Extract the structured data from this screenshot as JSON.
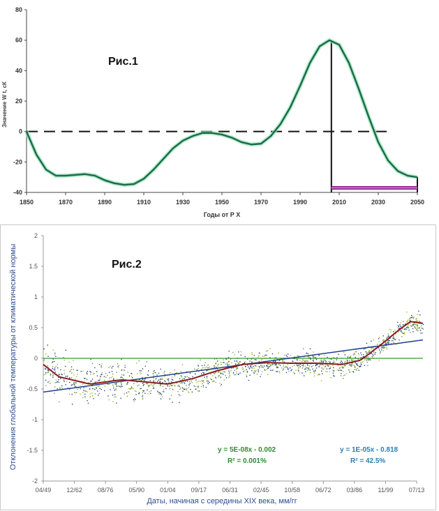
{
  "figure1": {
    "title": "Рис.1",
    "xlabel": "Годы от Р Х",
    "ylabel": "Значение W t, сК",
    "chart_data": {
      "type": "line",
      "x_ticks": [
        1850,
        1870,
        1890,
        1910,
        1930,
        1950,
        1970,
        1990,
        2010,
        2030,
        2050
      ],
      "y_ticks": [
        -40,
        -20,
        0,
        20,
        40,
        60,
        80
      ],
      "xlim": [
        1850,
        2050
      ],
      "ylim": [
        -40,
        80
      ],
      "series": [
        {
          "color": "#1d6b4f",
          "x": [
            1850,
            1855,
            1860,
            1865,
            1870,
            1875,
            1880,
            1885,
            1890,
            1895,
            1900,
            1905,
            1910,
            1915,
            1920,
            1925,
            1930,
            1935,
            1940,
            1945,
            1950,
            1955,
            1960,
            1965,
            1970,
            1975,
            1980,
            1985,
            1990,
            1995,
            2000,
            2005,
            2010,
            2015,
            2020,
            2025,
            2030,
            2035,
            2040,
            2045,
            2050
          ],
          "y": [
            0,
            -15,
            -25,
            -29,
            -29,
            -28.5,
            -28,
            -29,
            -32,
            -34,
            -35,
            -34.5,
            -31,
            -25,
            -18,
            -11,
            -6,
            -3,
            -1,
            -1,
            -2,
            -4,
            -7,
            -8.5,
            -8,
            -3,
            5,
            16,
            30,
            45,
            56,
            60,
            57,
            45,
            28,
            10,
            -7,
            -19,
            -26,
            -29,
            -30
          ]
        }
      ],
      "reference_line": {
        "y": 0,
        "style": "dashed",
        "x_range": [
          1850,
          2035
        ]
      },
      "vertical_line": {
        "x": 2006
      },
      "highlight_band": {
        "x_range": [
          2006,
          2050
        ],
        "y": -37,
        "color": "#8b1a8b"
      },
      "grid": false
    }
  },
  "figure2": {
    "title": "Рис.2",
    "xlabel": "Даты, начиная с середины XIX века, мм/гг",
    "ylabel": "Отклонения глобальной температуры от климатической нормы",
    "chart_data": {
      "type": "scatter",
      "x_ticks": [
        "04/49",
        "12/62",
        "08/76",
        "05/90",
        "01/04",
        "09/17",
        "06/31",
        "02/45",
        "10/58",
        "06/72",
        "03/86",
        "11/99",
        "07/13"
      ],
      "y_ticks": [
        "-2",
        "-1.5",
        "-1",
        "-0.5",
        "0",
        "0.5",
        "1",
        "1.5",
        "2"
      ],
      "ylim": [
        -2,
        2
      ],
      "series": [
        {
          "type": "line",
          "color": "#8b1a1a",
          "description_points": [
            [
              0,
              -0.1
            ],
            [
              0.5,
              -0.3
            ],
            [
              1.5,
              -0.42
            ],
            [
              2.5,
              -0.35
            ],
            [
              3.2,
              -0.38
            ],
            [
              4.0,
              -0.42
            ],
            [
              4.8,
              -0.33
            ],
            [
              5.6,
              -0.2
            ],
            [
              6.4,
              -0.1
            ],
            [
              7.2,
              -0.07
            ],
            [
              8.0,
              -0.08
            ],
            [
              8.8,
              -0.08
            ],
            [
              9.6,
              -0.1
            ],
            [
              10.2,
              -0.03
            ],
            [
              10.8,
              0.2
            ],
            [
              11.4,
              0.45
            ],
            [
              11.8,
              0.6
            ],
            [
              12.2,
              0.57
            ]
          ]
        },
        {
          "type": "trend",
          "color": "#1f3f8f",
          "y_start": -0.55,
          "y_end": 0.3
        },
        {
          "type": "trend",
          "color": "#2e9a2e",
          "y_start": 0.0,
          "y_end": 0.0
        }
      ],
      "annotations": [
        {
          "text": "y = 5E-08x - 0.002",
          "color": "#2e8b2e"
        },
        {
          "text": "R² = 0.001%",
          "color": "#2e8b2e"
        },
        {
          "text": "y = 1E-05x - 0.818",
          "color": "#2a7fb0"
        },
        {
          "text": "R² = 42.5%",
          "color": "#2a7fb0"
        }
      ],
      "grid": false
    }
  }
}
